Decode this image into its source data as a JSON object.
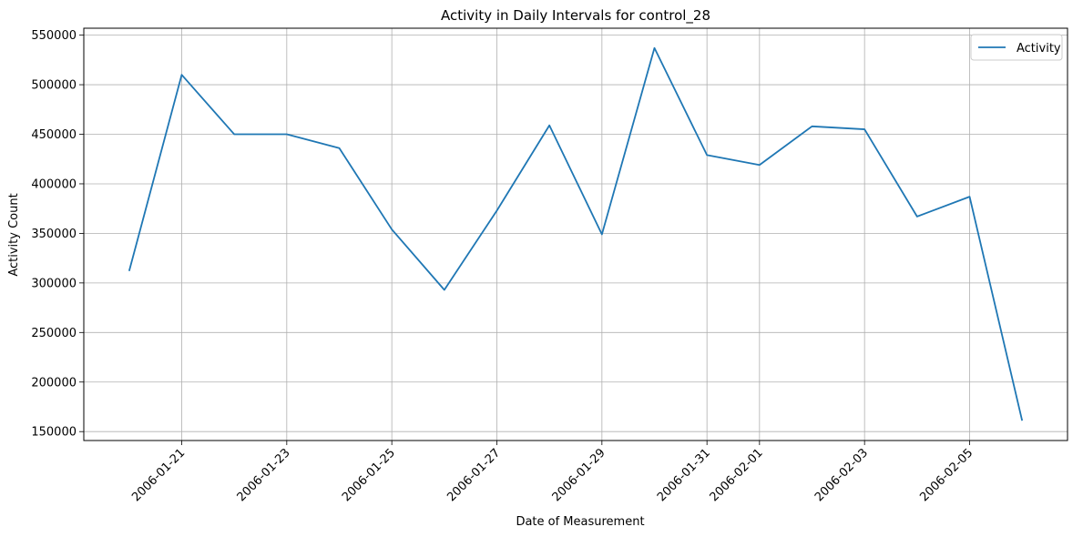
{
  "chart_data": {
    "type": "line",
    "title": "Activity in Daily Intervals for control_28",
    "xlabel": "Date of Measurement",
    "ylabel": "Activity Count",
    "x": [
      "2006-01-20",
      "2006-01-21",
      "2006-01-22",
      "2006-01-23",
      "2006-01-24",
      "2006-01-25",
      "2006-01-26",
      "2006-01-27",
      "2006-01-28",
      "2006-01-29",
      "2006-01-30",
      "2006-01-31",
      "2006-02-01",
      "2006-02-02",
      "2006-02-03",
      "2006-02-04",
      "2006-02-05",
      "2006-02-06"
    ],
    "series": [
      {
        "name": "Activity",
        "color": "#1f77b4",
        "values": [
          312000,
          510000,
          450000,
          450000,
          436000,
          354000,
          293000,
          373000,
          459000,
          349000,
          537000,
          429000,
          419000,
          458000,
          455000,
          367000,
          387000,
          161000
        ]
      }
    ],
    "x_tick_labels": [
      "2006-01-21",
      "2006-01-23",
      "2006-01-25",
      "2006-01-27",
      "2006-01-29",
      "2006-01-31",
      "2006-02-01",
      "2006-02-03",
      "2006-02-05"
    ],
    "y_ticks": [
      150000,
      200000,
      250000,
      300000,
      350000,
      400000,
      450000,
      500000,
      550000
    ],
    "ylim": [
      141000,
      557000
    ],
    "grid": true,
    "legend": "top-right"
  }
}
